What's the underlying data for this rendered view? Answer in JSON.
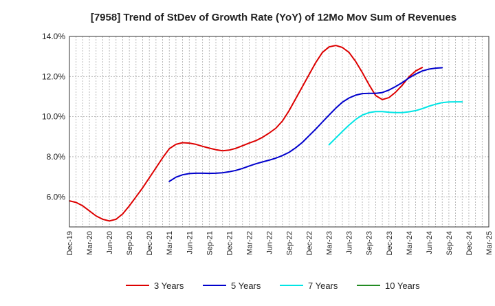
{
  "chart_data": {
    "type": "line",
    "title": "[7958]  Trend of StDev of Growth Rate (YoY) of 12Mo Mov Sum of Revenues",
    "xlabel": "",
    "ylabel": "",
    "ylim": [
      4.5,
      14.0
    ],
    "y_ticks": [
      6.0,
      8.0,
      10.0,
      12.0,
      14.0
    ],
    "y_tick_labels": [
      "6.0%",
      "8.0%",
      "10.0%",
      "12.0%",
      "14.0%"
    ],
    "x_tick_labels": [
      "Dec-19",
      "Mar-20",
      "Jun-20",
      "Sep-20",
      "Dec-20",
      "Mar-21",
      "Jun-21",
      "Sep-21",
      "Dec-21",
      "Mar-22",
      "Jun-22",
      "Sep-22",
      "Dec-22",
      "Mar-23",
      "Jun-23",
      "Sep-23",
      "Dec-23",
      "Mar-24",
      "Jun-24",
      "Sep-24",
      "Dec-24",
      "Mar-25"
    ],
    "grid": true,
    "legend_position": "bottom",
    "series": [
      {
        "name": "3 Years",
        "color": "#dd0000",
        "start_index": 0,
        "values": [
          5.8,
          5.72,
          5.55,
          5.3,
          5.05,
          4.88,
          4.8,
          4.88,
          5.15,
          5.55,
          6.0,
          6.45,
          6.95,
          7.45,
          7.95,
          8.4,
          8.62,
          8.7,
          8.68,
          8.62,
          8.52,
          8.43,
          8.35,
          8.3,
          8.33,
          8.42,
          8.55,
          8.68,
          8.8,
          8.97,
          9.18,
          9.42,
          9.78,
          10.3,
          10.9,
          11.5,
          12.1,
          12.7,
          13.2,
          13.48,
          13.55,
          13.45,
          13.2,
          12.75,
          12.2,
          11.6,
          11.05,
          10.85,
          10.95,
          11.22,
          11.57,
          11.98,
          12.28,
          12.45
        ]
      },
      {
        "name": "5 Years",
        "color": "#0000cc",
        "start_index": 15,
        "values": [
          6.77,
          6.98,
          7.1,
          7.16,
          7.18,
          7.18,
          7.17,
          7.18,
          7.2,
          7.25,
          7.32,
          7.42,
          7.54,
          7.65,
          7.74,
          7.83,
          7.93,
          8.06,
          8.22,
          8.45,
          8.72,
          9.05,
          9.38,
          9.73,
          10.08,
          10.42,
          10.72,
          10.93,
          11.07,
          11.15,
          11.16,
          11.16,
          11.2,
          11.33,
          11.5,
          11.7,
          11.93,
          12.12,
          12.28,
          12.37,
          12.42,
          12.44
        ]
      },
      {
        "name": "7 Years",
        "color": "#00e5e5",
        "start_index": 39,
        "values": [
          8.6,
          8.93,
          9.26,
          9.58,
          9.86,
          10.08,
          10.2,
          10.25,
          10.25,
          10.22,
          10.2,
          10.2,
          10.24,
          10.3,
          10.4,
          10.52,
          10.62,
          10.7,
          10.73,
          10.74,
          10.74
        ]
      },
      {
        "name": "10 Years",
        "color": "#228b22",
        "start_index": 0,
        "values": []
      }
    ]
  }
}
